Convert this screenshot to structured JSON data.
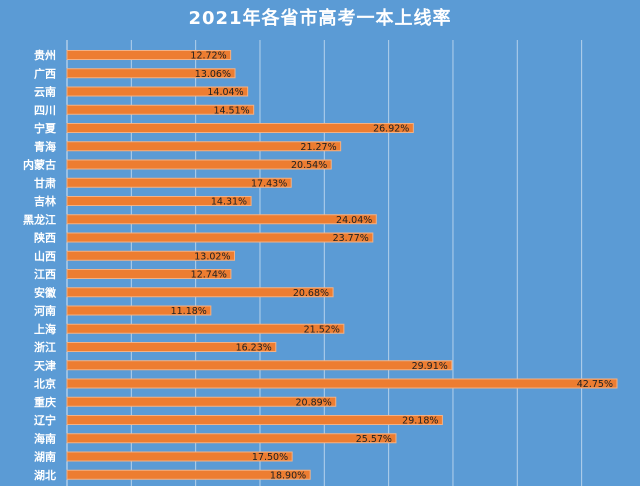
{
  "chart_data": {
    "type": "bar",
    "orientation": "horizontal",
    "title": "2021年各省市高考一本上线率",
    "categories": [
      "贵州",
      "广西",
      "云南",
      "四川",
      "宁夏",
      "青海",
      "内蒙古",
      "甘肃",
      "吉林",
      "黑龙江",
      "陕西",
      "山西",
      "江西",
      "安徽",
      "河南",
      "上海",
      "浙江",
      "天津",
      "北京",
      "重庆",
      "辽宁",
      "海南",
      "湖南",
      "湖北"
    ],
    "values": [
      12.72,
      13.06,
      14.04,
      14.51,
      26.92,
      21.27,
      20.54,
      17.43,
      14.31,
      24.04,
      23.77,
      13.02,
      12.74,
      20.68,
      11.18,
      21.52,
      16.23,
      29.91,
      42.75,
      20.89,
      29.18,
      25.57,
      17.5,
      18.9
    ],
    "value_labels": [
      "12.72%",
      "13.06%",
      "14.04%",
      "14.51%",
      "26.92%",
      "21.27%",
      "20.54%",
      "17.43%",
      "14.31%",
      "24.04%",
      "23.77%",
      "13.02%",
      "12.74%",
      "20.68%",
      "11.18%",
      "21.52%",
      "16.23%",
      "29.91%",
      "42.75%",
      "20.89%",
      "29.18%",
      "25.57%",
      "17.50%",
      "18.90%"
    ],
    "xlim": [
      0,
      45
    ],
    "grid": true,
    "colors": {
      "bar": "#ed7d31",
      "bar_edge": "#f4b183",
      "background": "#5b9bd5",
      "grid": "#ffffff"
    }
  }
}
